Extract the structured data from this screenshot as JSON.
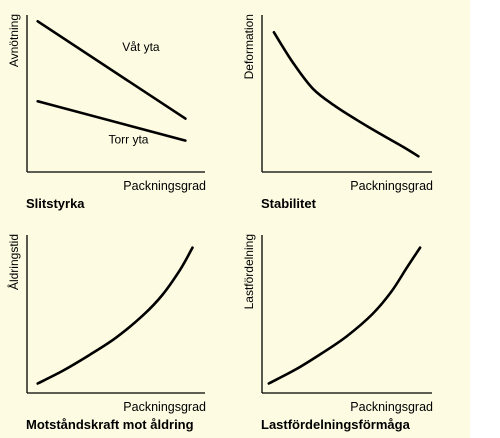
{
  "page": {
    "background": "#fdfbe2"
  },
  "chart_data": [
    {
      "id": "slitstyrka",
      "type": "line",
      "title": "Slitstyrka",
      "xlabel": "Packningsgrad",
      "ylabel": "Avnötning",
      "xlim": [
        0,
        10
      ],
      "ylim": [
        0,
        10
      ],
      "series": [
        {
          "name": "Våt yta",
          "x": [
            0.6,
            8.9
          ],
          "y": [
            9.6,
            3.4
          ],
          "label_at": [
            6.4,
            7.7
          ]
        },
        {
          "name": "Torr yta",
          "x": [
            0.6,
            8.9
          ],
          "y": [
            4.5,
            2.0
          ],
          "label_at": [
            5.7,
            1.8
          ]
        }
      ]
    },
    {
      "id": "stabilitet",
      "type": "line",
      "title": "Stabilitet",
      "xlabel": "Packningsgrad",
      "ylabel": "Deformation",
      "xlim": [
        0,
        10
      ],
      "ylim": [
        0,
        10
      ],
      "series": [
        {
          "x": [
            0.7,
            1.8,
            3.0,
            4.3,
            5.6,
            7.0,
            8.3,
            9.2
          ],
          "y": [
            8.9,
            7.0,
            5.3,
            4.2,
            3.3,
            2.4,
            1.6,
            1.0
          ]
        }
      ]
    },
    {
      "id": "aldring",
      "type": "line",
      "title": "Motståndskraft mot åldring",
      "xlabel": "Packningsgrad",
      "ylabel": "Åldringstid",
      "xlim": [
        0,
        10
      ],
      "ylim": [
        0,
        10
      ],
      "series": [
        {
          "x": [
            0.6,
            2.0,
            3.5,
            5.0,
            6.5,
            7.6,
            8.6,
            9.3
          ],
          "y": [
            0.6,
            1.4,
            2.4,
            3.5,
            4.9,
            6.2,
            7.8,
            9.2
          ]
        }
      ]
    },
    {
      "id": "lastfordelning",
      "type": "line",
      "title": "Lastfördelningsförmåga",
      "xlabel": "Packningsgrad",
      "ylabel": "Lastfördelning",
      "xlim": [
        0,
        10
      ],
      "ylim": [
        0,
        10
      ],
      "series": [
        {
          "x": [
            0.4,
            2.0,
            3.5,
            5.0,
            6.5,
            7.6,
            8.5,
            9.3
          ],
          "y": [
            0.6,
            1.5,
            2.5,
            3.6,
            5.0,
            6.4,
            7.9,
            9.2
          ]
        }
      ]
    }
  ]
}
